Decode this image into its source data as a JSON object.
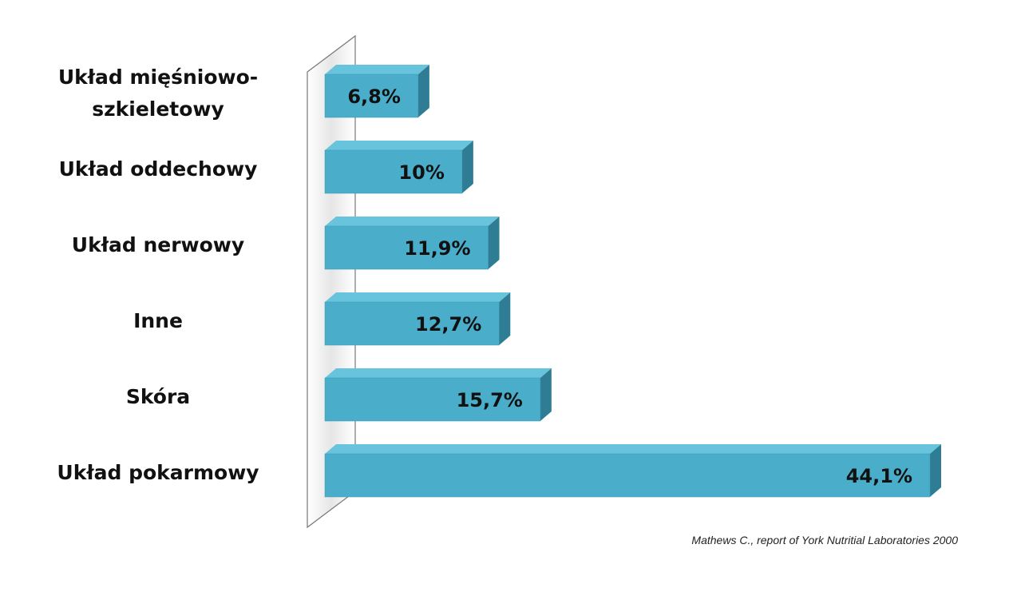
{
  "chart_data": {
    "type": "bar3d-horizontal",
    "categories": [
      "Układ mięśniowo-szkieletowy",
      "Układ oddechowy",
      "Układ nerwowy",
      "Inne",
      "Skóra",
      "Układ pokarmowy"
    ],
    "values": [
      6.8,
      10,
      11.9,
      12.7,
      15.7,
      44.1
    ],
    "value_labels": [
      "6,8%",
      "10%",
      "11,9%",
      "12,7%",
      "15,7%",
      "44,1%"
    ],
    "color": "#4aaecb",
    "source": "Mathews C., report of York Nutritial Laboratories 2000"
  }
}
